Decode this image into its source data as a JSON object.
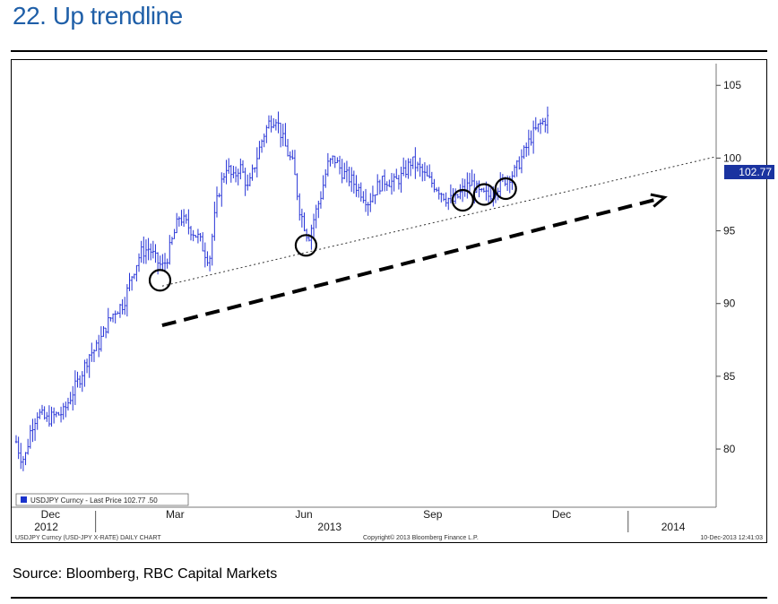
{
  "page": {
    "title": "22. Up trendline",
    "source": "Source: Bloomberg, RBC Capital Markets"
  },
  "chart_data": {
    "type": "candlestick",
    "series_name": "USDJPY Curncy",
    "legend": "USDJPY Curncy - Last Price 102.77 .50",
    "last_price": "102.77",
    "footer_left": "USDJPY Curncy (USD-JPY X-RATE) DAILY CHART",
    "footer_center": "Copyright© 2013 Bloomberg Finance L.P.",
    "footer_right": "10-Dec-2013 12:41:03",
    "y_ticks": [
      80,
      85,
      90,
      95,
      100,
      105
    ],
    "ylim": [
      76,
      106
    ],
    "x_tick_labels": [
      {
        "label": "Dec",
        "x": 0.1
      },
      {
        "label": "Mar",
        "x": 3.0
      },
      {
        "label": "Jun",
        "x": 6.0
      },
      {
        "label": "Sep",
        "x": 9.0
      },
      {
        "label": "Dec",
        "x": 12.0
      }
    ],
    "year_labels": [
      {
        "label": "2012",
        "x": 0.0
      },
      {
        "label": "2013",
        "x": 6.6
      },
      {
        "label": "2014",
        "x": 14.6
      }
    ],
    "xlim": [
      -0.7,
      15.6
    ],
    "price_path": [
      [
        -0.7,
        80.5
      ],
      [
        -0.6,
        79.5
      ],
      [
        -0.5,
        79.3
      ],
      [
        -0.35,
        81.5
      ],
      [
        -0.2,
        82.5
      ],
      [
        0.0,
        82.0
      ],
      [
        0.2,
        82.3
      ],
      [
        0.4,
        82.5
      ],
      [
        0.6,
        83.8
      ],
      [
        0.8,
        85.0
      ],
      [
        1.0,
        86.5
      ],
      [
        1.2,
        87.0
      ],
      [
        1.4,
        88.5
      ],
      [
        1.6,
        89.5
      ],
      [
        1.8,
        90.0
      ],
      [
        2.0,
        92.0
      ],
      [
        2.2,
        93.5
      ],
      [
        2.4,
        93.8
      ],
      [
        2.55,
        93.0
      ],
      [
        2.7,
        92.5
      ],
      [
        2.8,
        93.0
      ],
      [
        2.95,
        94.5
      ],
      [
        3.1,
        96.0
      ],
      [
        3.25,
        95.5
      ],
      [
        3.4,
        95.0
      ],
      [
        3.55,
        94.5
      ],
      [
        3.7,
        93.5
      ],
      [
        3.8,
        93.0
      ],
      [
        3.9,
        95.5
      ],
      [
        4.0,
        97.5
      ],
      [
        4.2,
        99.5
      ],
      [
        4.35,
        98.5
      ],
      [
        4.5,
        99.5
      ],
      [
        4.6,
        98.8
      ],
      [
        4.7,
        97.8
      ],
      [
        4.85,
        99.5
      ],
      [
        5.05,
        101.5
      ],
      [
        5.2,
        102.5
      ],
      [
        5.35,
        102.8
      ],
      [
        5.45,
        101.8
      ],
      [
        5.6,
        100.5
      ],
      [
        5.75,
        99.5
      ],
      [
        5.9,
        96.5
      ],
      [
        6.0,
        95.5
      ],
      [
        6.1,
        94.5
      ],
      [
        6.25,
        96.0
      ],
      [
        6.4,
        97.5
      ],
      [
        6.55,
        99.5
      ],
      [
        6.7,
        100.0
      ],
      [
        6.9,
        99.0
      ],
      [
        7.1,
        98.5
      ],
      [
        7.3,
        97.8
      ],
      [
        7.5,
        97.0
      ],
      [
        7.7,
        98.0
      ],
      [
        7.9,
        98.5
      ],
      [
        8.1,
        98.3
      ],
      [
        8.3,
        98.8
      ],
      [
        8.5,
        99.8
      ],
      [
        8.7,
        99.2
      ],
      [
        8.9,
        98.5
      ],
      [
        9.1,
        98.0
      ],
      [
        9.3,
        97.3
      ],
      [
        9.5,
        97.0
      ],
      [
        9.7,
        97.8
      ],
      [
        9.9,
        98.3
      ],
      [
        10.1,
        97.5
      ],
      [
        10.3,
        97.4
      ],
      [
        10.5,
        98.0
      ],
      [
        10.7,
        98.6
      ],
      [
        10.9,
        99.0
      ],
      [
        11.1,
        100.2
      ],
      [
        11.3,
        101.5
      ],
      [
        11.5,
        102.3
      ],
      [
        11.7,
        102.8
      ]
    ],
    "trendline": {
      "start": [
        2.7,
        91.2
      ],
      "end": [
        15.6,
        100.1
      ]
    },
    "arrow": {
      "start": [
        2.7,
        88.5
      ],
      "end": [
        14.4,
        97.3
      ]
    },
    "circles": [
      [
        2.65,
        91.6
      ],
      [
        6.05,
        94.0
      ],
      [
        9.7,
        97.1
      ],
      [
        10.2,
        97.5
      ],
      [
        10.7,
        97.9
      ]
    ]
  }
}
